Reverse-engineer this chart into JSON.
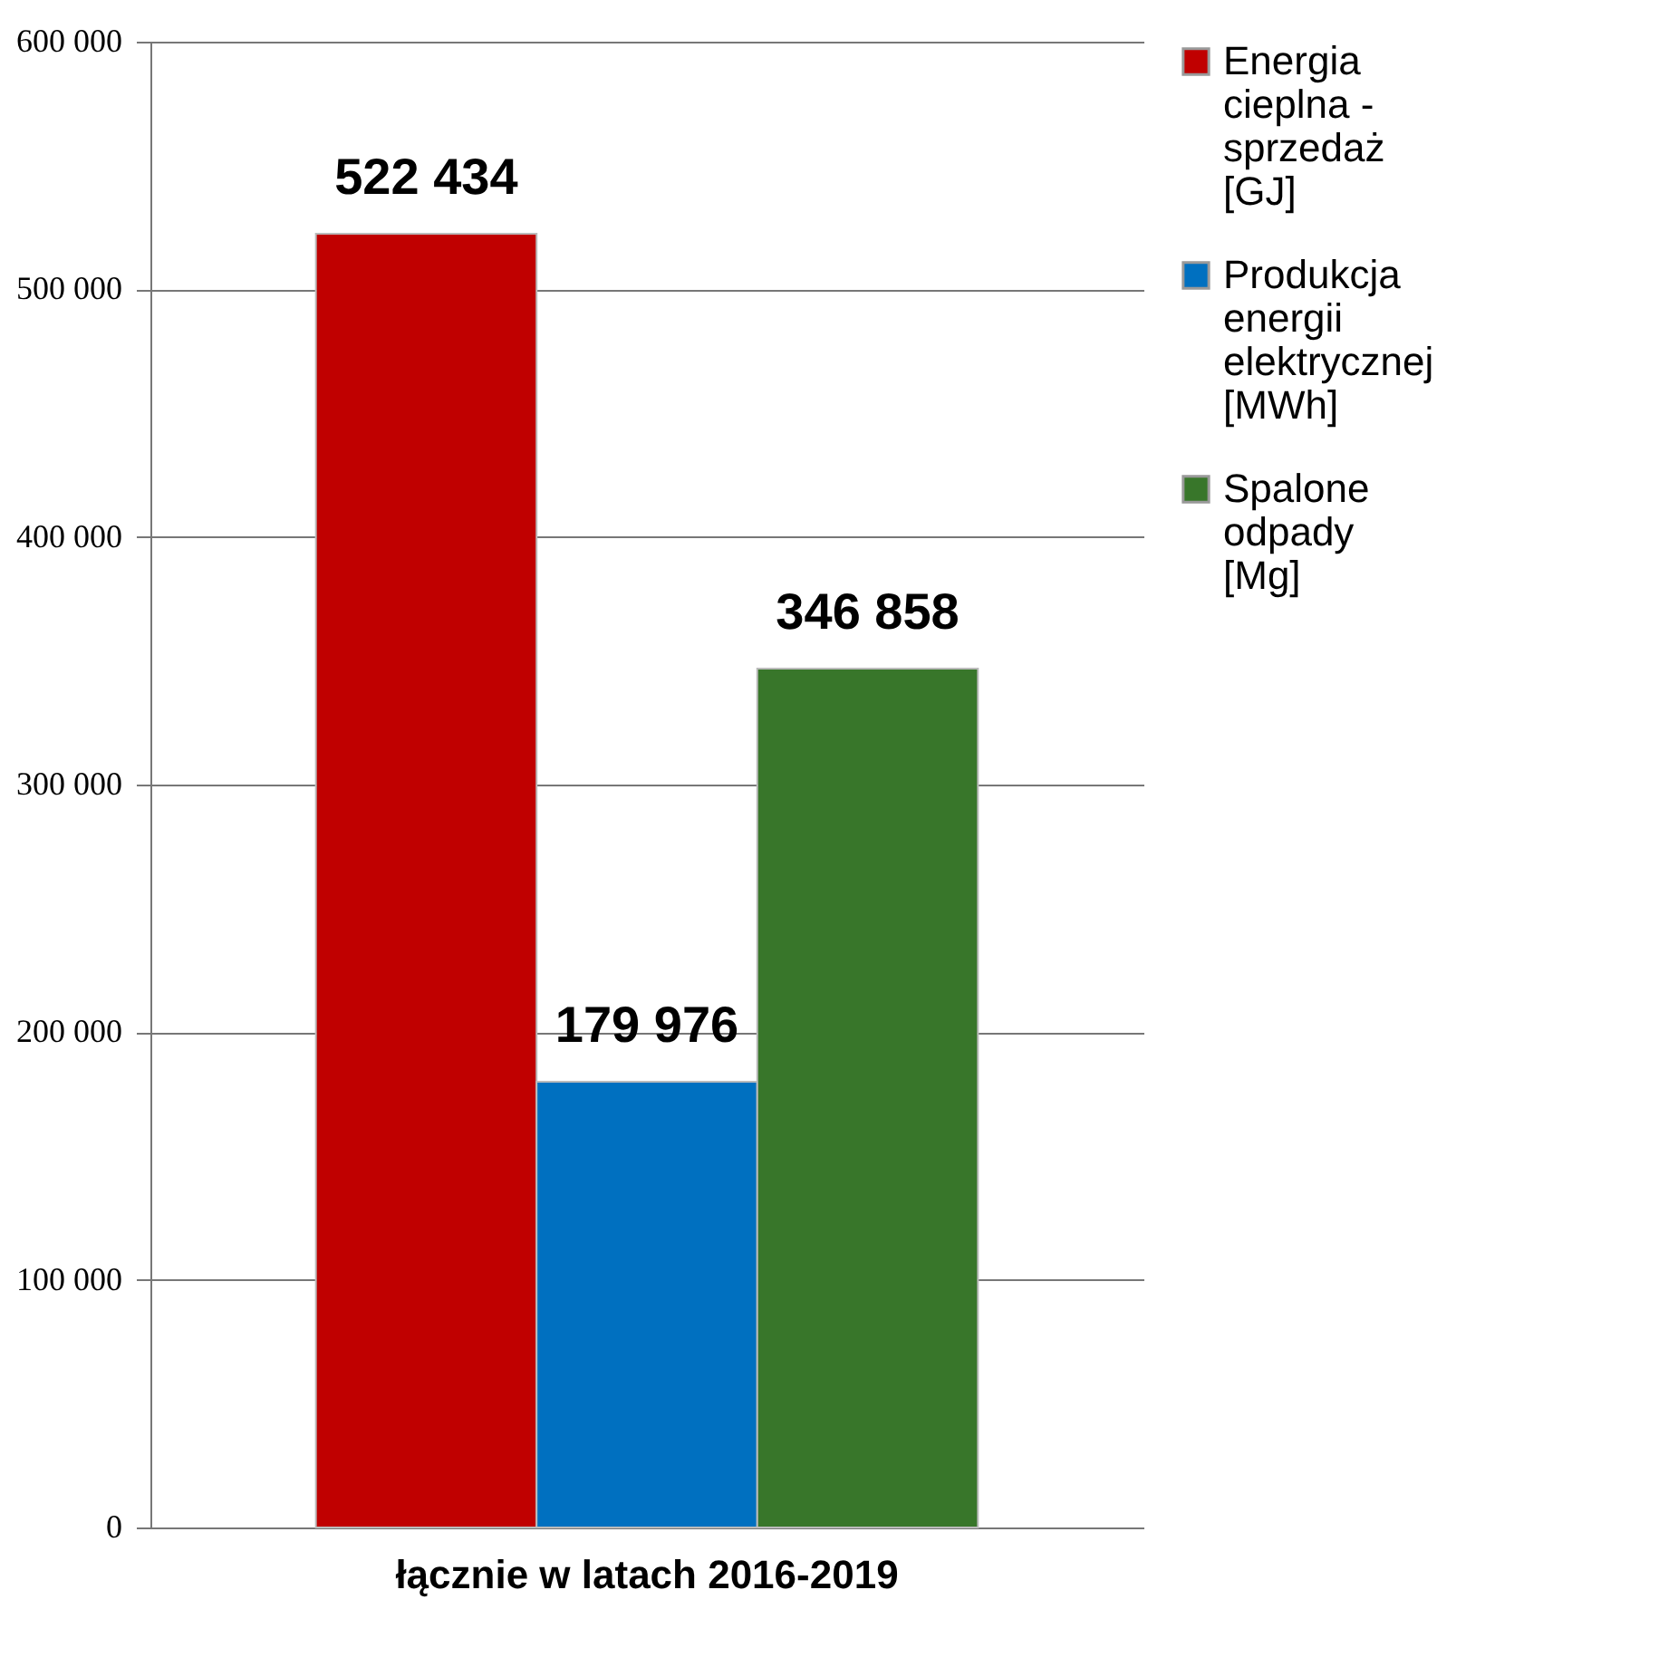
{
  "chart_data": {
    "type": "bar",
    "categories": [
      "łącznie w latach 2016-2019"
    ],
    "series": [
      {
        "name": "Energia cieplna - sprzedaż [GJ]",
        "color": "#c00000",
        "values": [
          522434
        ],
        "value_labels": [
          "522 434"
        ]
      },
      {
        "name": "Produkcja energii elektrycznej [MWh]",
        "color": "#0070c0",
        "values": [
          179976
        ],
        "value_labels": [
          "179 976"
        ]
      },
      {
        "name": "Spalone odpady [Mg]",
        "color": "#38762a",
        "values": [
          346858
        ],
        "value_labels": [
          "346 858"
        ]
      }
    ],
    "ylim": [
      0,
      600000
    ],
    "yticks": [
      {
        "value": 0,
        "label": "0"
      },
      {
        "value": 100000,
        "label": "100 000"
      },
      {
        "value": 200000,
        "label": "200 000"
      },
      {
        "value": 300000,
        "label": "300 000"
      },
      {
        "value": 400000,
        "label": "400 000"
      },
      {
        "value": 500000,
        "label": "500 000"
      },
      {
        "value": 600000,
        "label": "600 000"
      }
    ],
    "grid": "y",
    "legend": "right"
  }
}
